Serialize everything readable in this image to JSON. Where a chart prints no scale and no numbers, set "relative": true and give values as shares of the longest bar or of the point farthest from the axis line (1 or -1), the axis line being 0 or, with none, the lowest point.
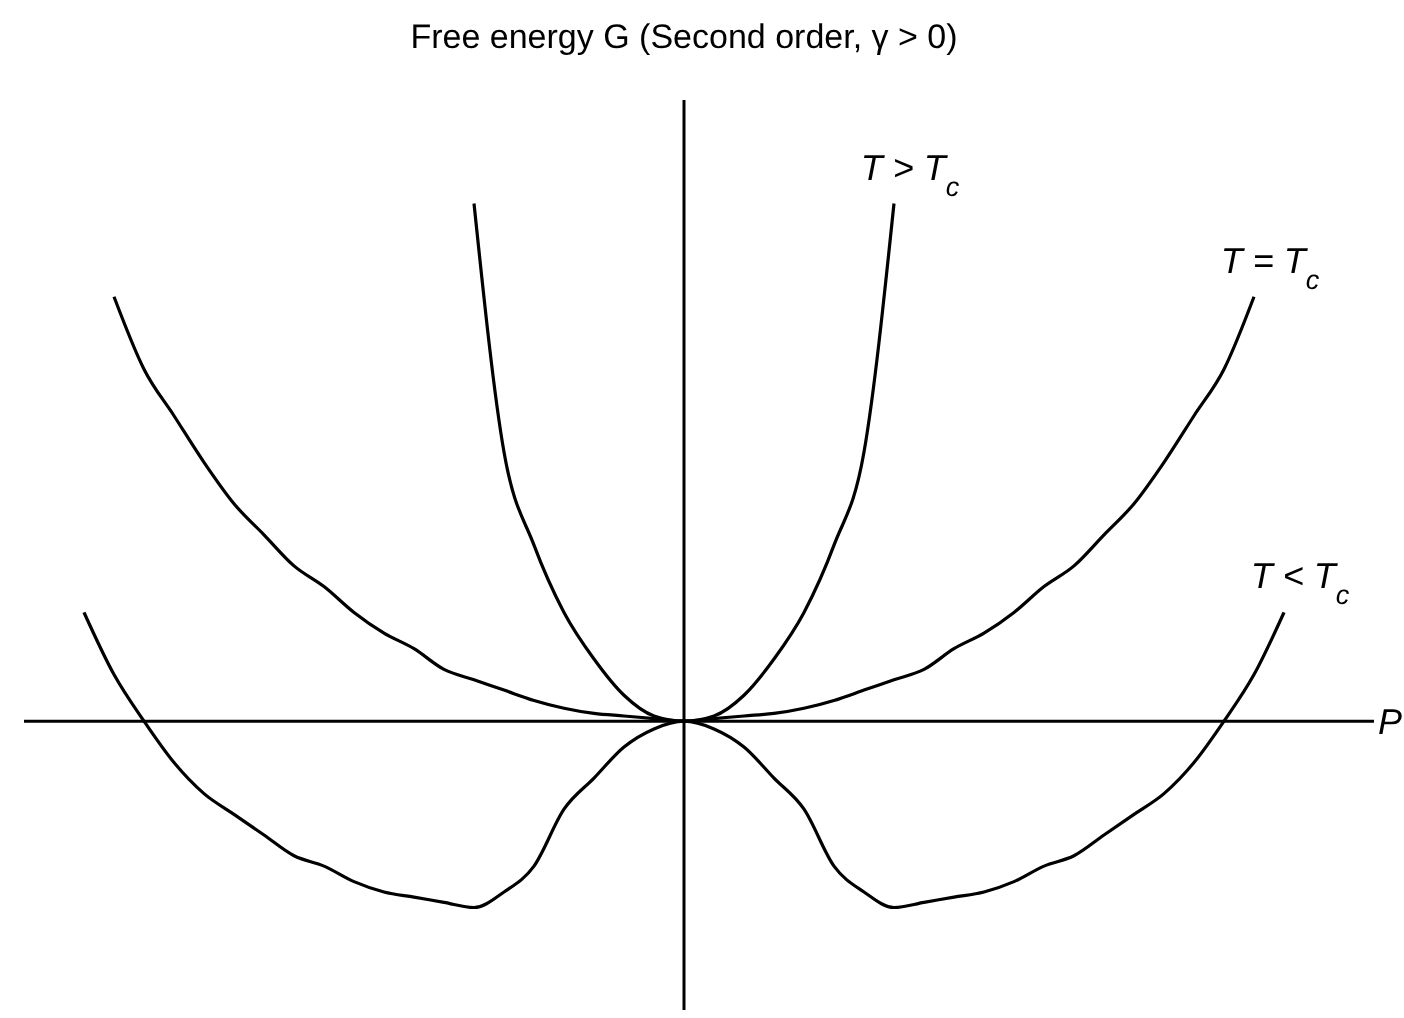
{
  "chart_data": {
    "type": "line",
    "title": "Free energy G (Second order,  γ > 0)",
    "xlabel": "P",
    "relative": true,
    "legend": false,
    "grid": false,
    "marker": "none",
    "line_style": "solid",
    "categories": [
      null,
      null,
      null,
      null,
      null,
      null,
      null,
      null,
      null,
      null,
      null,
      null,
      null,
      null,
      null,
      null,
      null,
      null,
      null,
      null,
      null,
      null,
      null,
      null,
      null,
      null,
      null,
      null,
      null,
      null,
      null,
      null,
      null,
      null,
      null,
      null,
      null,
      null,
      null,
      null,
      null,
      null,
      null,
      null,
      null,
      null
    ],
    "series": [
      {
        "name": "T > T$_{c}$",
        "color": "#000000",
        "values": [
          null,
          null,
          null,
          null,
          null,
          null,
          null,
          null,
          null,
          null,
          null,
          null,
          null,
          null,
          null,
          1.0,
          0.52,
          0.34,
          0.21,
          0.12,
          0.05,
          0.01,
          0,
          0.01,
          0.05,
          0.12,
          0.21,
          0.34,
          0.52,
          1.0,
          null,
          null,
          null,
          null,
          null,
          null,
          null,
          null,
          null,
          null,
          null,
          null,
          null,
          null,
          null,
          null
        ]
      },
      {
        "name": "T = T$_{c}$",
        "color": "#000000",
        "values": [
          null,
          null,
          null,
          0.82,
          0.68,
          0.59,
          0.5,
          0.42,
          0.36,
          0.3,
          0.26,
          0.21,
          0.17,
          0.14,
          0.1,
          0.08,
          0.06,
          0.04,
          0.025,
          0.015,
          0.01,
          0.005,
          0,
          0.005,
          0.01,
          0.015,
          0.025,
          0.04,
          0.06,
          0.08,
          0.1,
          0.14,
          0.17,
          0.21,
          0.26,
          0.3,
          0.36,
          0.42,
          0.5,
          0.59,
          0.68,
          0.82,
          null,
          null,
          null,
          null
        ]
      },
      {
        "name": "T < T$_{c}$",
        "color": "#000000",
        "values": [
          null,
          null,
          0.21,
          0.09,
          0,
          -0.08,
          -0.14,
          -0.18,
          -0.22,
          -0.26,
          -0.28,
          -0.31,
          -0.33,
          -0.34,
          -0.35,
          -0.36,
          -0.33,
          -0.28,
          -0.17,
          -0.11,
          -0.05,
          -0.015,
          0,
          -0.015,
          -0.05,
          -0.11,
          -0.17,
          -0.28,
          -0.33,
          -0.36,
          -0.35,
          -0.34,
          -0.33,
          -0.31,
          -0.28,
          -0.26,
          -0.22,
          -0.18,
          -0.14,
          -0.08,
          0,
          0.09,
          0.21,
          null,
          null,
          null
        ]
      }
    ]
  }
}
